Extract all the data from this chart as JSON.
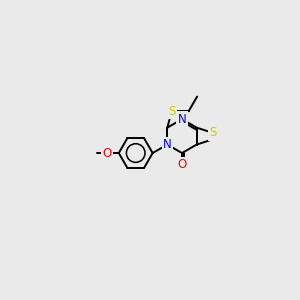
{
  "background_color": "#eaeaea",
  "bond_color": "#000000",
  "atom_colors": {
    "N": "#0000ff",
    "O": "#ff0000",
    "S": "#cccc00",
    "C": "#000000"
  },
  "font_size": 8.5,
  "bond_width": 1.4
}
